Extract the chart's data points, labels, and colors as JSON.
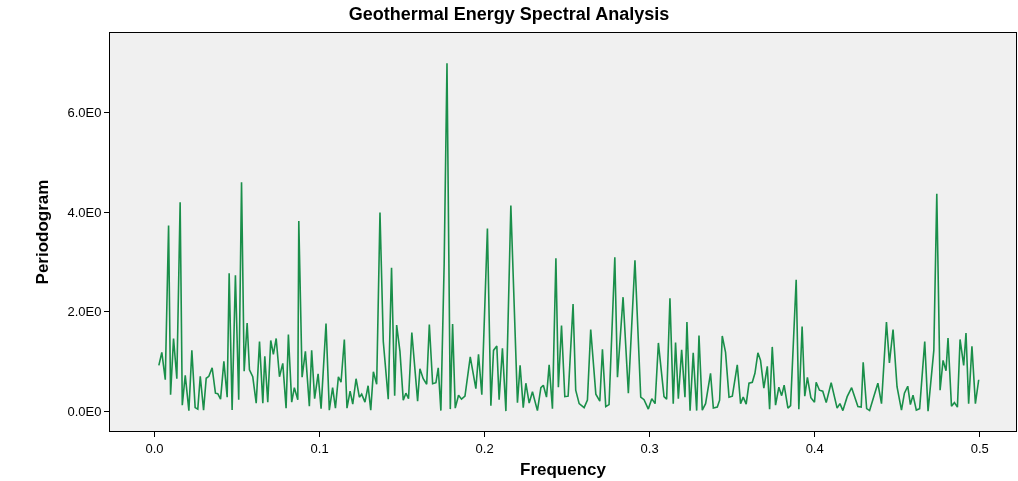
{
  "chart_data": {
    "type": "line",
    "title": "Geothermal Energy Spectral Analysis",
    "xlabel": "Frequency",
    "ylabel": "Periodogram",
    "xlim": [
      -0.027,
      0.522
    ],
    "ylim": [
      -0.4,
      7.6
    ],
    "xticks": [
      {
        "value": 0,
        "label": "0.0"
      },
      0.1,
      0.2,
      0.3,
      0.4,
      0.5
    ],
    "yticks": [
      {
        "value": 0,
        "label": "0.0E0"
      },
      {
        "value": 2,
        "label": "2.0E0"
      },
      {
        "value": 4,
        "label": "4.0E0"
      },
      {
        "value": 6,
        "label": "6.0E0"
      }
    ],
    "grid": false,
    "marker": "none",
    "line_style": "solid",
    "series": [
      {
        "color": "#1a8f4a",
        "x": [
          0.0026,
          0.0044,
          0.0065,
          0.0085,
          0.0097,
          0.0115,
          0.0135,
          0.0155,
          0.0168,
          0.0186,
          0.0208,
          0.0226,
          0.0246,
          0.0262,
          0.0277,
          0.0297,
          0.0313,
          0.0329,
          0.0349,
          0.0369,
          0.0383,
          0.04,
          0.042,
          0.044,
          0.0452,
          0.047,
          0.049,
          0.051,
          0.0527,
          0.0543,
          0.0561,
          0.0575,
          0.0595,
          0.0616,
          0.0636,
          0.0656,
          0.0668,
          0.0686,
          0.0704,
          0.072,
          0.0737,
          0.0757,
          0.0777,
          0.0797,
          0.0811,
          0.0831,
          0.0847,
          0.0868,
          0.0874,
          0.0894,
          0.0914,
          0.0938,
          0.0952,
          0.097,
          0.0991,
          0.1009,
          0.1039,
          0.1059,
          0.1079,
          0.1096,
          0.1114,
          0.113,
          0.115,
          0.1166,
          0.1185,
          0.1201,
          0.1221,
          0.1241,
          0.1255,
          0.1275,
          0.1294,
          0.131,
          0.1326,
          0.1346,
          0.1366,
          0.1386,
          0.1416,
          0.1436,
          0.1455,
          0.1467,
          0.1487,
          0.1507,
          0.1523,
          0.1539,
          0.1559,
          0.1594,
          0.1608,
          0.1628,
          0.1649,
          0.1665,
          0.1685,
          0.1705,
          0.1719,
          0.1735,
          0.1755,
          0.1772,
          0.1792,
          0.1806,
          0.1822,
          0.1842,
          0.186,
          0.1881,
          0.1913,
          0.1947,
          0.1963,
          0.1983,
          0.2017,
          0.2038,
          0.2054,
          0.2074,
          0.2088,
          0.2108,
          0.2129,
          0.2159,
          0.2199,
          0.2215,
          0.2234,
          0.225,
          0.227,
          0.229,
          0.232,
          0.2341,
          0.2356,
          0.2375,
          0.2391,
          0.2411,
          0.2432,
          0.2447,
          0.2466,
          0.2486,
          0.2506,
          0.2536,
          0.2552,
          0.2573,
          0.2603,
          0.2623,
          0.2643,
          0.2674,
          0.2698,
          0.2714,
          0.2734,
          0.2754,
          0.2789,
          0.2805,
          0.2839,
          0.2871,
          0.2911,
          0.2946,
          0.2966,
          0.2992,
          0.3013,
          0.3033,
          0.3053,
          0.3087,
          0.3103,
          0.3123,
          0.3143,
          0.3157,
          0.3174,
          0.3194,
          0.3214,
          0.3226,
          0.3245,
          0.3264,
          0.3285,
          0.3299,
          0.3319,
          0.3339,
          0.3369,
          0.3386,
          0.341,
          0.3424,
          0.344,
          0.346,
          0.3481,
          0.3501,
          0.3531,
          0.3551,
          0.3567,
          0.3585,
          0.3602,
          0.3622,
          0.3638,
          0.3656,
          0.3672,
          0.3692,
          0.3713,
          0.3727,
          0.3743,
          0.3763,
          0.3783,
          0.38,
          0.3815,
          0.3838,
          0.3854,
          0.3888,
          0.3904,
          0.3924,
          0.394,
          0.3956,
          0.3977,
          0.3999,
          0.4009,
          0.4029,
          0.4049,
          0.407,
          0.41,
          0.4136,
          0.4153,
          0.4171,
          0.4197,
          0.4224,
          0.4262,
          0.4282,
          0.4294,
          0.4315,
          0.4333,
          0.4358,
          0.4383,
          0.4405,
          0.4435,
          0.4453,
          0.4475,
          0.4499,
          0.4526,
          0.4544,
          0.4564,
          0.458,
          0.4596,
          0.4616,
          0.4636,
          0.4667,
          0.4687,
          0.4722,
          0.474,
          0.476,
          0.4778,
          0.4796,
          0.4808,
          0.4829,
          0.4847,
          0.4865,
          0.4881,
          0.4903,
          0.4917,
          0.4933,
          0.4953,
          0.4974,
          0.4994
        ],
        "values": [
          0.92,
          1.18,
          0.63,
          3.73,
          0.33,
          1.46,
          0.65,
          4.2,
          0.12,
          0.72,
          0.01,
          1.22,
          0.07,
          0.04,
          0.7,
          0.02,
          0.66,
          0.7,
          0.87,
          0.36,
          0.35,
          0.24,
          1.0,
          0.28,
          2.77,
          0.02,
          2.73,
          0.23,
          4.6,
          0.8,
          1.77,
          0.83,
          0.69,
          0.16,
          1.4,
          0.16,
          1.1,
          0.18,
          1.42,
          1.14,
          1.46,
          0.69,
          0.96,
          0.06,
          1.54,
          0.18,
          0.47,
          0.23,
          3.82,
          0.68,
          1.2,
          0.1,
          1.22,
          0.25,
          0.75,
          0.05,
          1.76,
          0.02,
          0.47,
          0.06,
          0.69,
          0.58,
          1.44,
          0.06,
          0.4,
          0.14,
          0.65,
          0.28,
          0.34,
          0.18,
          0.51,
          0.02,
          0.79,
          0.54,
          3.99,
          1.4,
          0.24,
          2.88,
          0.31,
          1.73,
          1.2,
          0.22,
          0.36,
          0.25,
          1.58,
          0.2,
          0.85,
          0.65,
          0.54,
          1.74,
          0.55,
          0.57,
          0.87,
          0.01,
          2.97,
          6.99,
          0.04,
          1.75,
          0.06,
          0.32,
          0.24,
          0.3,
          1.09,
          0.45,
          1.14,
          0.33,
          3.67,
          0.11,
          1.22,
          1.31,
          0.23,
          1.26,
          0.0,
          4.13,
          0.17,
          0.92,
          0.07,
          0.56,
          0.16,
          0.39,
          0.01,
          0.47,
          0.52,
          0.28,
          0.93,
          0.05,
          3.07,
          0.48,
          1.72,
          0.29,
          0.3,
          2.15,
          0.42,
          0.15,
          0.07,
          0.22,
          1.64,
          0.34,
          0.2,
          1.24,
          0.09,
          0.13,
          3.09,
          0.68,
          2.29,
          0.36,
          3.03,
          0.28,
          0.23,
          0.04,
          0.25,
          0.15,
          1.37,
          0.29,
          0.24,
          2.27,
          0.15,
          1.38,
          0.25,
          1.23,
          0.28,
          1.79,
          0.01,
          1.17,
          0.01,
          1.52,
          0.02,
          0.15,
          0.76,
          0.06,
          0.08,
          0.22,
          1.51,
          1.18,
          0.28,
          0.3,
          0.93,
          0.15,
          0.28,
          0.14,
          0.56,
          0.58,
          0.76,
          1.17,
          1.02,
          0.46,
          0.9,
          0.04,
          1.29,
          0.12,
          0.48,
          0.31,
          0.52,
          0.06,
          0.11,
          2.64,
          0.04,
          1.7,
          0.3,
          0.68,
          0.27,
          0.18,
          0.58,
          0.42,
          0.4,
          0.17,
          0.57,
          0.06,
          0.15,
          0.01,
          0.29,
          0.47,
          0.09,
          0.08,
          0.98,
          0.05,
          0.01,
          0.29,
          0.56,
          0.15,
          1.79,
          0.97,
          1.64,
          0.49,
          0.02,
          0.36,
          0.5,
          0.13,
          0.32,
          0.02,
          0.05,
          1.4,
          0.0,
          1.22,
          4.37,
          0.42,
          1.02,
          0.81,
          1.47,
          0.1,
          0.17,
          0.08,
          1.44,
          0.92,
          1.57,
          0.15,
          1.3,
          0.15,
          0.63
        ]
      }
    ]
  }
}
